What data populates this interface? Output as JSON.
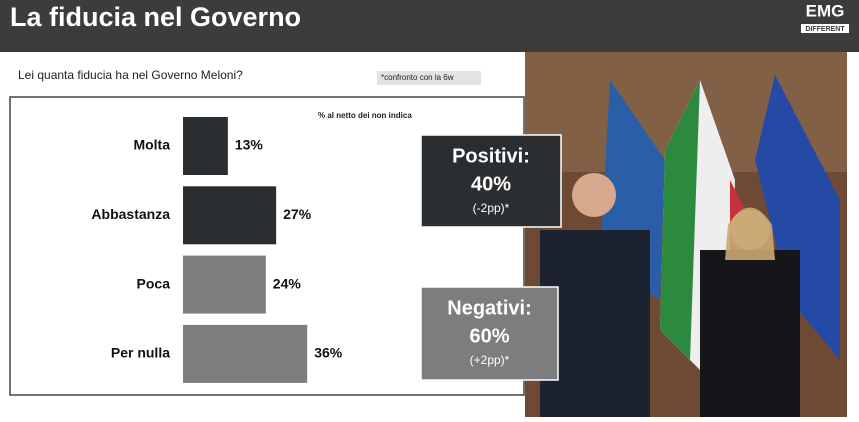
{
  "header": {
    "title": "La fiducia nel Governo",
    "logo": "EMG",
    "logo_tagline": "DIFFERENT"
  },
  "chart_data": {
    "type": "bar",
    "orientation": "horizontal",
    "title": "Lei quanta fiducia ha nel Governo Meloni?",
    "note": "*confronto con la 6w",
    "subtitle": "% al netto dei non indica",
    "categories": [
      "Molta",
      "Abbastanza",
      "Poca",
      "Per nulla"
    ],
    "values": [
      13,
      27,
      24,
      36
    ],
    "value_labels": [
      "13%",
      "27%",
      "24%",
      "36%"
    ],
    "colors": [
      "#2b2e30",
      "#2b2e30",
      "#7b7d7f",
      "#7b7d7f"
    ]
  },
  "summary": [
    {
      "label": "Positivi:",
      "value": "40%",
      "change": "(-2pp)*",
      "color": "#2b2e30"
    },
    {
      "label": "Negativi:",
      "value": "60%",
      "change": "(+2pp)*",
      "color": "#7b7d7f"
    }
  ]
}
